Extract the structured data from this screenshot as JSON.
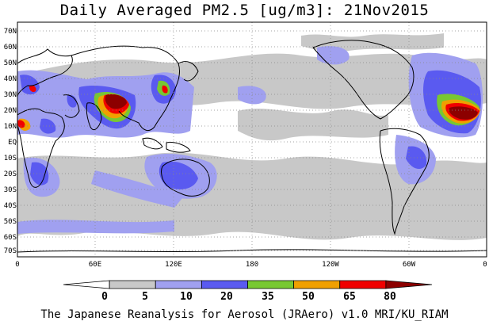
{
  "map": {
    "title": "Daily Averaged PM2.5 [ug/m3]: 21Nov2015",
    "latitude_labels": [
      "70N",
      "60N",
      "50N",
      "40N",
      "30N",
      "20N",
      "10N",
      "EQ",
      "10S",
      "20S",
      "30S",
      "40S",
      "50S",
      "60S",
      "70S"
    ],
    "longitude_labels": [
      "0",
      "60E",
      "120E",
      "180",
      "120W",
      "60W",
      "0"
    ],
    "colorbar": {
      "levels": [
        "0",
        "5",
        "10",
        "20",
        "35",
        "50",
        "65",
        "80"
      ],
      "colors": [
        "#ffffff",
        "#c8c8c8",
        "#a0a0f0",
        "#5a5af0",
        "#78c832",
        "#f0a000",
        "#f00000",
        "#8c0000"
      ]
    },
    "credit": "The Japanese Reanalysis for Aerosol (JRAero) v1.0 MRI/KU_RIAM"
  }
}
